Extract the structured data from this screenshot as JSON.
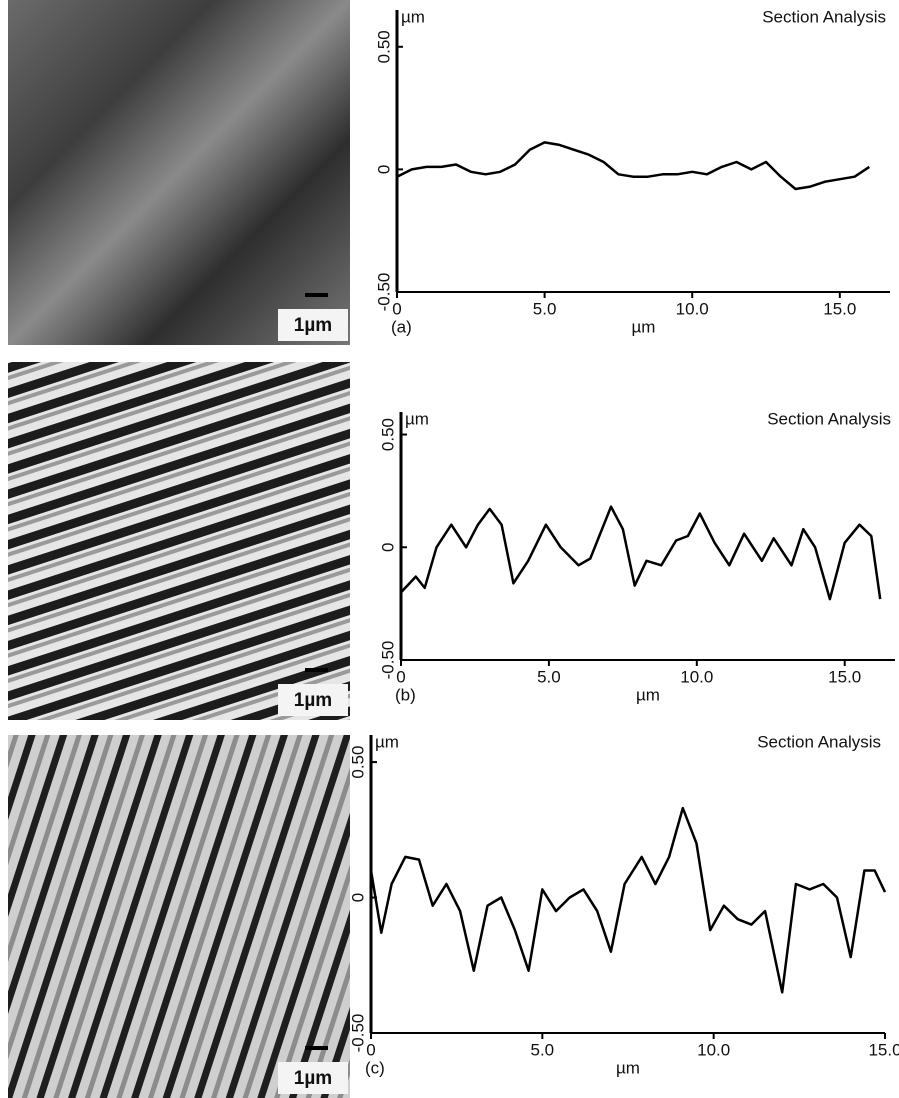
{
  "chart_data": [
    {
      "type": "line",
      "title": "Section Analysis",
      "panel_label": "(a)",
      "y_unit": "µm",
      "x_label": "µm",
      "scale_bar_label": "1µm",
      "color": "#000000",
      "x": [
        0,
        0.5,
        1,
        1.5,
        2,
        2.5,
        3,
        3.5,
        4,
        4.5,
        5,
        5.5,
        6,
        6.5,
        7,
        7.5,
        8,
        8.5,
        9,
        9.5,
        10,
        10.5,
        11,
        11.5,
        12,
        12.5,
        13,
        13.5,
        14,
        14.5,
        15,
        15.5,
        16
      ],
      "values": [
        -0.03,
        0,
        0.01,
        0.01,
        0.02,
        -0.01,
        -0.02,
        -0.01,
        0.02,
        0.08,
        0.11,
        0.1,
        0.08,
        0.06,
        0.03,
        -0.02,
        -0.03,
        -0.03,
        -0.02,
        -0.02,
        -0.01,
        -0.02,
        0.01,
        0.03,
        0.0,
        0.03,
        -0.03,
        -0.08,
        -0.07,
        -0.05,
        -0.04,
        -0.03,
        0.01
      ],
      "xlim": [
        0,
        16.7
      ],
      "ylim": [
        -0.5,
        0.65
      ],
      "xticks": [
        0,
        {
          "value": 5,
          "label": "5.0"
        },
        {
          "value": 10,
          "label": "10.0"
        },
        {
          "value": 15,
          "label": "15.0"
        }
      ],
      "yticks": [
        {
          "value": -0.5,
          "label": "-0.50"
        },
        0,
        {
          "value": 0.5,
          "label": "0.50"
        }
      ]
    },
    {
      "type": "line",
      "title": "Section Analysis",
      "panel_label": "(b)",
      "y_unit": "µm",
      "x_label": "µm",
      "scale_bar_label": "1µm",
      "color": "#000000",
      "x": [
        0,
        0.5,
        0.8,
        1.2,
        1.7,
        2.2,
        2.6,
        3.0,
        3.4,
        3.8,
        4.3,
        4.9,
        5.4,
        6.0,
        6.4,
        7.1,
        7.5,
        7.9,
        8.3,
        8.8,
        9.3,
        9.7,
        10.1,
        10.6,
        11.1,
        11.6,
        12.2,
        12.6,
        13.2,
        13.6,
        14.0,
        14.5,
        15.0,
        15.5,
        15.9,
        16.2
      ],
      "values": [
        -0.2,
        -0.13,
        -0.18,
        0.0,
        0.1,
        0.0,
        0.1,
        0.17,
        0.1,
        -0.16,
        -0.06,
        0.1,
        0.0,
        -0.08,
        -0.05,
        0.18,
        0.08,
        -0.17,
        -0.06,
        -0.08,
        0.03,
        0.05,
        0.15,
        0.02,
        -0.08,
        0.06,
        -0.06,
        0.04,
        -0.08,
        0.08,
        0.0,
        -0.23,
        0.02,
        0.1,
        0.05,
        -0.23
      ],
      "xlim": [
        0,
        16.7
      ],
      "ylim": [
        -0.5,
        0.6
      ],
      "xticks": [
        0,
        {
          "value": 5,
          "label": "5.0"
        },
        {
          "value": 10,
          "label": "10.0"
        },
        {
          "value": 15,
          "label": "15.0"
        }
      ],
      "yticks": [
        {
          "value": -0.5,
          "label": "-0.50"
        },
        0,
        {
          "value": 0.5,
          "label": "0.50"
        }
      ]
    },
    {
      "type": "line",
      "title": "Section Analysis",
      "panel_label": "(c)",
      "y_unit": "µm",
      "x_label": "µm",
      "scale_bar_label": "1µm",
      "color": "#000000",
      "x": [
        0,
        0.3,
        0.6,
        1.0,
        1.4,
        1.8,
        2.2,
        2.6,
        3.0,
        3.4,
        3.8,
        4.2,
        4.6,
        5.0,
        5.4,
        5.8,
        6.2,
        6.6,
        7.0,
        7.4,
        7.9,
        8.3,
        8.7,
        9.1,
        9.5,
        9.9,
        10.3,
        10.7,
        11.1,
        11.5,
        12.0,
        12.4,
        12.8,
        13.2,
        13.6,
        14.0,
        14.4,
        14.7,
        15.0
      ],
      "values": [
        0.1,
        -0.13,
        0.05,
        0.15,
        0.14,
        -0.03,
        0.05,
        -0.05,
        -0.27,
        -0.03,
        0.0,
        -0.12,
        -0.27,
        0.03,
        -0.05,
        0.0,
        0.03,
        -0.05,
        -0.2,
        0.05,
        0.15,
        0.05,
        0.15,
        0.33,
        0.2,
        -0.12,
        -0.03,
        -0.08,
        -0.1,
        -0.05,
        -0.35,
        0.05,
        0.03,
        0.05,
        0.0,
        -0.22,
        0.1,
        0.1,
        0.02
      ],
      "xlim": [
        0,
        15
      ],
      "ylim": [
        -0.5,
        0.6
      ],
      "xticks": [
        0,
        {
          "value": 5,
          "label": "5.0"
        },
        {
          "value": 10,
          "label": "10.0"
        },
        {
          "value": 15,
          "label": "15.0"
        }
      ],
      "yticks": [
        {
          "value": -0.5,
          "label": "-0.50"
        },
        0,
        {
          "value": 0.5,
          "label": "0.50"
        }
      ]
    }
  ]
}
